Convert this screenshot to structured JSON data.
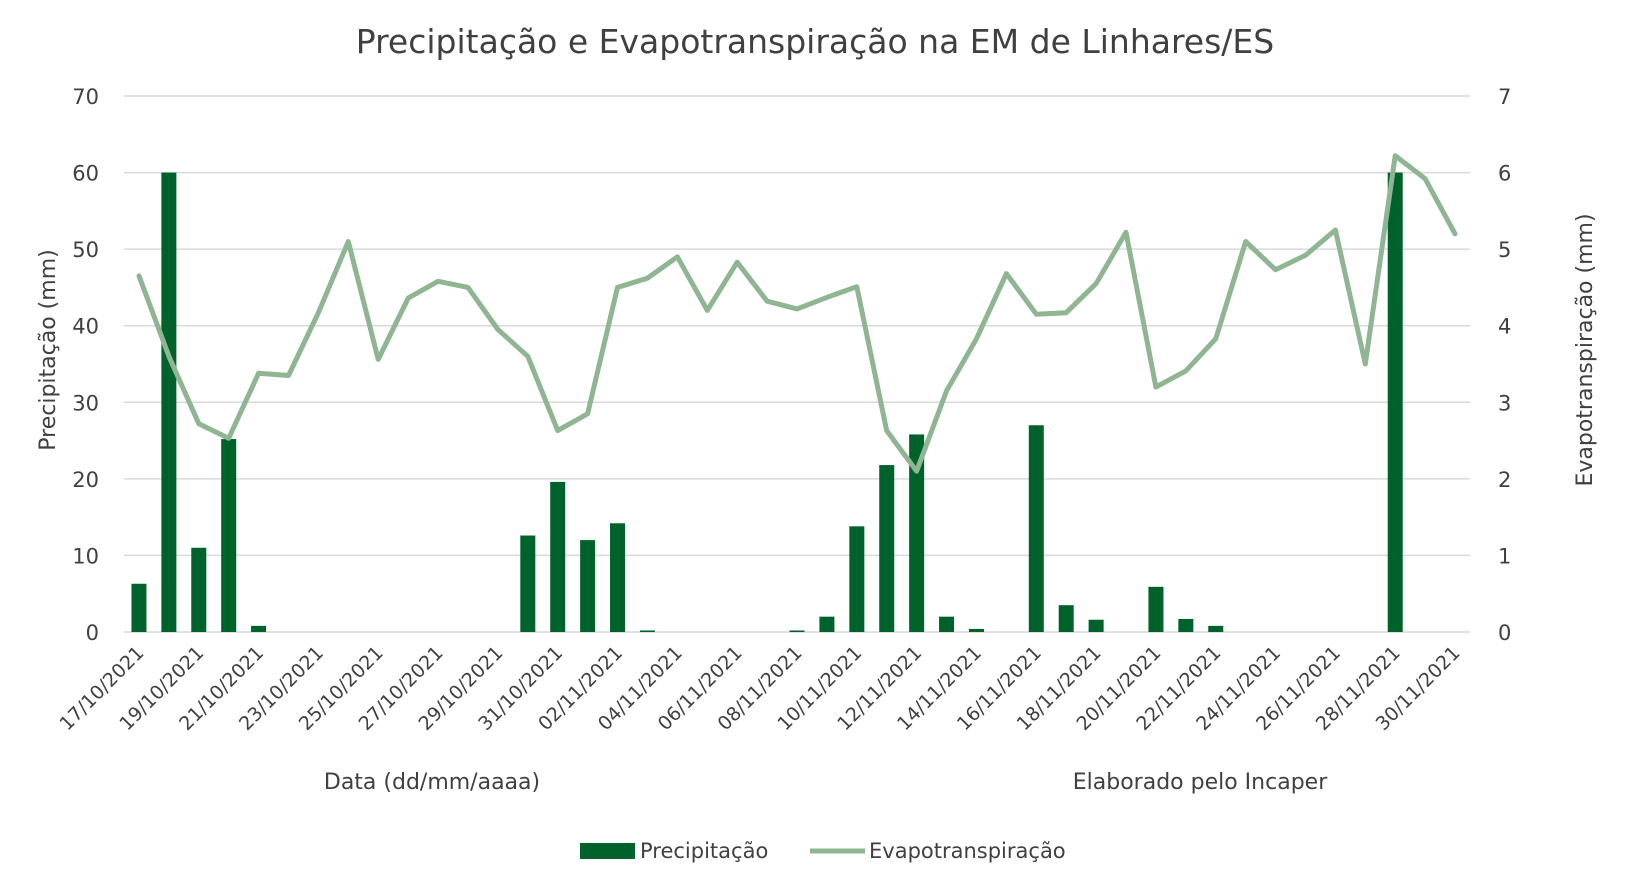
{
  "chart_data": {
    "type": "bar+line",
    "title": "Precipitação e Evapotranspiração na EM de Linhares/ES",
    "xlabel": "Data (dd/mm/aaaa)",
    "ylabel_left": "Precipitação (mm)",
    "ylabel_right": "Evapotranspiração (mm)",
    "note": "Elaborado pelo Incaper",
    "ylim_left": [
      0,
      70
    ],
    "ylim_right": [
      0,
      7
    ],
    "yticks_left": [
      "0",
      "10",
      "20",
      "30",
      "40",
      "50",
      "60",
      "70"
    ],
    "yticks_right": [
      "0",
      "1",
      "2",
      "3",
      "4",
      "5",
      "6",
      "7"
    ],
    "grid": true,
    "legend_position": "bottom",
    "categories": [
      "17/10/2021",
      "18/10/2021",
      "19/10/2021",
      "20/10/2021",
      "21/10/2021",
      "22/10/2021",
      "23/10/2021",
      "24/10/2021",
      "25/10/2021",
      "26/10/2021",
      "27/10/2021",
      "28/10/2021",
      "29/10/2021",
      "30/10/2021",
      "31/10/2021",
      "01/11/2021",
      "02/11/2021",
      "03/11/2021",
      "04/11/2021",
      "05/11/2021",
      "06/11/2021",
      "07/11/2021",
      "08/11/2021",
      "09/11/2021",
      "10/11/2021",
      "11/11/2021",
      "12/11/2021",
      "13/11/2021",
      "14/11/2021",
      "15/11/2021",
      "16/11/2021",
      "17/11/2021",
      "18/11/2021",
      "19/11/2021",
      "20/11/2021",
      "21/11/2021",
      "22/11/2021",
      "23/11/2021",
      "24/11/2021",
      "25/11/2021",
      "26/11/2021",
      "27/11/2021",
      "28/11/2021",
      "29/11/2021",
      "30/11/2021"
    ],
    "x_tick_labels": [
      "17/10/2021",
      "19/10/2021",
      "21/10/2021",
      "23/10/2021",
      "25/10/2021",
      "27/10/2021",
      "29/10/2021",
      "31/10/2021",
      "02/11/2021",
      "04/11/2021",
      "06/11/2021",
      "08/11/2021",
      "10/11/2021",
      "12/11/2021",
      "14/11/2021",
      "16/11/2021",
      "18/11/2021",
      "20/11/2021",
      "22/11/2021",
      "24/11/2021",
      "26/11/2021",
      "28/11/2021",
      "30/11/2021"
    ],
    "series": [
      {
        "name": "Precipitação",
        "type": "bar",
        "axis": "left",
        "color": "#00622b",
        "values": [
          6.3,
          60,
          11,
          25.2,
          0.8,
          0,
          0,
          0,
          0,
          0,
          0,
          0,
          0,
          12.6,
          19.6,
          12,
          14.2,
          0.2,
          0,
          0,
          0,
          0,
          0.2,
          2,
          13.8,
          21.8,
          25.8,
          2,
          0.4,
          0,
          27,
          3.5,
          1.6,
          0,
          5.9,
          1.7,
          0.8,
          0,
          0,
          0,
          0,
          0,
          60,
          0,
          0
        ]
      },
      {
        "name": "Evapotranspiração",
        "type": "line",
        "axis": "right",
        "color": "#8fb593",
        "values": [
          4.65,
          3.6,
          2.72,
          2.53,
          3.38,
          3.35,
          4.17,
          5.1,
          3.56,
          4.36,
          4.58,
          4.5,
          3.95,
          3.6,
          2.63,
          2.85,
          4.5,
          4.62,
          4.9,
          4.2,
          4.83,
          4.32,
          4.22,
          4.37,
          4.51,
          2.63,
          2.1,
          3.15,
          3.83,
          4.68,
          4.15,
          4.17,
          4.55,
          5.22,
          3.2,
          3.41,
          3.83,
          5.1,
          4.73,
          4.92,
          5.25,
          3.5,
          6.22,
          5.92,
          5.2
        ]
      }
    ]
  }
}
